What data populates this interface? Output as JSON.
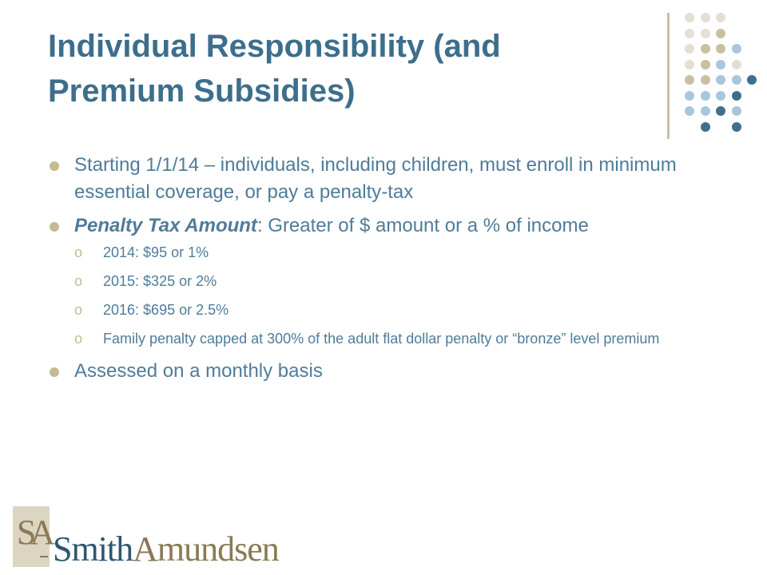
{
  "slide": {
    "title": "Individual Responsibility (and Premium Subsidies)",
    "bullets": [
      {
        "text": "Starting 1/1/14 – individuals, including children, must enroll in minimum essential coverage, or pay a penalty-tax"
      },
      {
        "emphasis": "Penalty Tax Amount",
        "text": ": Greater of $ amount or a % of income",
        "sub_bullets": [
          "2014: $95 or 1%",
          "2015: $325 or 2%",
          "2016: $695 or 2.5%",
          "Family penalty capped at 300% of the adult flat dollar penalty or “bronze” level premium"
        ]
      },
      {
        "text": "Assessed on a monthly basis"
      }
    ],
    "sub_bullet_glyph": "o"
  },
  "logo": {
    "monogram": "SA",
    "word_1": "Smith",
    "word_2": "Amundsen"
  },
  "colors": {
    "title": "#3d6e8c",
    "body_text": "#4f7c99",
    "bullet": "#c4bb93",
    "deco_light": "#e3dfd2",
    "deco_tan": "#c9c0a0",
    "deco_lightblue": "#a8c6dc",
    "deco_darkblue": "#3f6f8e"
  }
}
